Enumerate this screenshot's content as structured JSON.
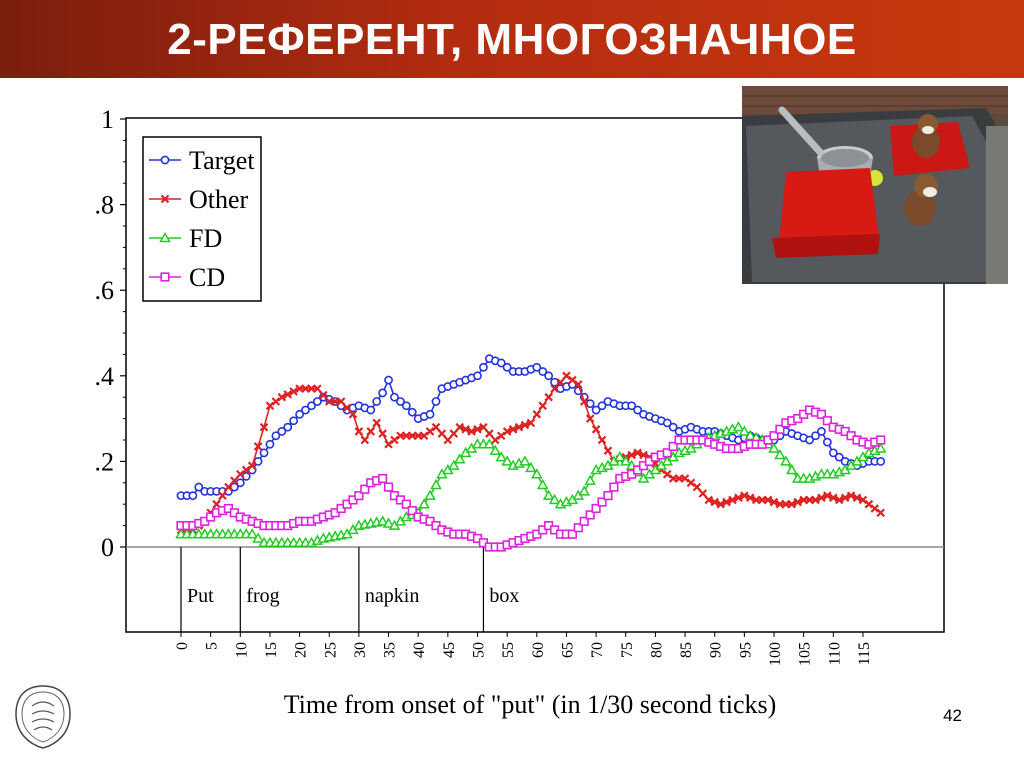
{
  "slide": {
    "title": "2-РЕФЕРЕНТ, МНОГОЗНАЧНОЕ",
    "page_number": "42",
    "photo_icon": "scene-photo-icon",
    "logo_icon": "university-seal-icon"
  },
  "chart_data": {
    "type": "line",
    "title": "",
    "xlabel": "Time from  onset of \"put\" (in 1/30 second ticks)",
    "ylabel": "",
    "xlim": [
      0,
      120
    ],
    "ylim": [
      -0.2,
      1
    ],
    "x_ticks": [
      0,
      5,
      10,
      15,
      20,
      25,
      30,
      35,
      40,
      45,
      50,
      55,
      60,
      65,
      70,
      75,
      80,
      85,
      90,
      95,
      100,
      105,
      110,
      115
    ],
    "x_tick_labels": [
      "0",
      "5",
      "10",
      "15",
      "20",
      "25",
      "30",
      "35",
      "40",
      "45",
      "50",
      "55",
      "60",
      "65",
      "70",
      "75",
      "80",
      "85",
      "90",
      "95",
      "100",
      "105",
      "110",
      "115"
    ],
    "y_ticks": [
      0,
      0.2,
      0.4,
      0.6,
      0.8,
      1
    ],
    "y_tick_labels": [
      "0",
      ".2",
      ".4",
      ".6",
      ".8",
      "1"
    ],
    "grid": false,
    "legend_position": "top-left",
    "word_markers": [
      {
        "label": "Put",
        "x": 0
      },
      {
        "label": "frog",
        "x": 10
      },
      {
        "label": "napkin",
        "x": 30
      },
      {
        "label": "box",
        "x": 51
      }
    ],
    "series": [
      {
        "name": "Target",
        "color": "#2233dd",
        "marker": "circle",
        "knots": [
          [
            0,
            0.12
          ],
          [
            2,
            0.12
          ],
          [
            3,
            0.14
          ],
          [
            4,
            0.13
          ],
          [
            8,
            0.13
          ],
          [
            10,
            0.15
          ],
          [
            12,
            0.18
          ],
          [
            14,
            0.22
          ],
          [
            16,
            0.26
          ],
          [
            18,
            0.28
          ],
          [
            20,
            0.31
          ],
          [
            22,
            0.33
          ],
          [
            24,
            0.35
          ],
          [
            26,
            0.34
          ],
          [
            28,
            0.32
          ],
          [
            30,
            0.33
          ],
          [
            32,
            0.32
          ],
          [
            34,
            0.36
          ],
          [
            35,
            0.39
          ],
          [
            36,
            0.35
          ],
          [
            38,
            0.33
          ],
          [
            40,
            0.3
          ],
          [
            42,
            0.31
          ],
          [
            44,
            0.37
          ],
          [
            46,
            0.38
          ],
          [
            48,
            0.39
          ],
          [
            50,
            0.4
          ],
          [
            52,
            0.44
          ],
          [
            54,
            0.43
          ],
          [
            56,
            0.41
          ],
          [
            58,
            0.41
          ],
          [
            60,
            0.42
          ],
          [
            62,
            0.4
          ],
          [
            64,
            0.37
          ],
          [
            66,
            0.38
          ],
          [
            68,
            0.35
          ],
          [
            70,
            0.32
          ],
          [
            72,
            0.34
          ],
          [
            74,
            0.33
          ],
          [
            76,
            0.33
          ],
          [
            78,
            0.31
          ],
          [
            80,
            0.3
          ],
          [
            82,
            0.29
          ],
          [
            84,
            0.27
          ],
          [
            86,
            0.28
          ],
          [
            88,
            0.27
          ],
          [
            90,
            0.27
          ],
          [
            92,
            0.26
          ],
          [
            94,
            0.25
          ],
          [
            96,
            0.26
          ],
          [
            98,
            0.25
          ],
          [
            100,
            0.25
          ],
          [
            102,
            0.27
          ],
          [
            104,
            0.26
          ],
          [
            106,
            0.25
          ],
          [
            108,
            0.27
          ],
          [
            110,
            0.22
          ],
          [
            112,
            0.2
          ],
          [
            114,
            0.19
          ],
          [
            116,
            0.2
          ],
          [
            118,
            0.2
          ]
        ]
      },
      {
        "name": "Other",
        "color": "#dd2222",
        "marker": "x",
        "knots": [
          [
            0,
            0.04
          ],
          [
            2,
            0.04
          ],
          [
            4,
            0.06
          ],
          [
            6,
            0.1
          ],
          [
            8,
            0.14
          ],
          [
            10,
            0.17
          ],
          [
            12,
            0.19
          ],
          [
            14,
            0.28
          ],
          [
            15,
            0.33
          ],
          [
            17,
            0.35
          ],
          [
            20,
            0.37
          ],
          [
            23,
            0.37
          ],
          [
            25,
            0.34
          ],
          [
            27,
            0.34
          ],
          [
            29,
            0.31
          ],
          [
            30,
            0.27
          ],
          [
            31,
            0.25
          ],
          [
            33,
            0.29
          ],
          [
            35,
            0.24
          ],
          [
            37,
            0.26
          ],
          [
            39,
            0.26
          ],
          [
            41,
            0.26
          ],
          [
            43,
            0.28
          ],
          [
            45,
            0.25
          ],
          [
            47,
            0.28
          ],
          [
            49,
            0.27
          ],
          [
            51,
            0.28
          ],
          [
            53,
            0.25
          ],
          [
            55,
            0.27
          ],
          [
            57,
            0.28
          ],
          [
            59,
            0.29
          ],
          [
            61,
            0.33
          ],
          [
            63,
            0.37
          ],
          [
            65,
            0.4
          ],
          [
            67,
            0.38
          ],
          [
            69,
            0.3
          ],
          [
            71,
            0.25
          ],
          [
            73,
            0.2
          ],
          [
            75,
            0.21
          ],
          [
            77,
            0.22
          ],
          [
            79,
            0.21
          ],
          [
            81,
            0.18
          ],
          [
            83,
            0.16
          ],
          [
            85,
            0.16
          ],
          [
            87,
            0.14
          ],
          [
            89,
            0.11
          ],
          [
            91,
            0.1
          ],
          [
            93,
            0.11
          ],
          [
            95,
            0.12
          ],
          [
            97,
            0.11
          ],
          [
            99,
            0.11
          ],
          [
            101,
            0.1
          ],
          [
            103,
            0.1
          ],
          [
            105,
            0.11
          ],
          [
            107,
            0.11
          ],
          [
            109,
            0.12
          ],
          [
            111,
            0.11
          ],
          [
            113,
            0.12
          ],
          [
            115,
            0.11
          ],
          [
            117,
            0.09
          ],
          [
            118,
            0.08
          ]
        ]
      },
      {
        "name": "FD",
        "color": "#22cc22",
        "marker": "triangle",
        "knots": [
          [
            0,
            0.03
          ],
          [
            12,
            0.03
          ],
          [
            14,
            0.01
          ],
          [
            18,
            0.01
          ],
          [
            22,
            0.01
          ],
          [
            24,
            0.02
          ],
          [
            28,
            0.03
          ],
          [
            30,
            0.05
          ],
          [
            34,
            0.06
          ],
          [
            36,
            0.05
          ],
          [
            38,
            0.07
          ],
          [
            40,
            0.08
          ],
          [
            42,
            0.12
          ],
          [
            44,
            0.17
          ],
          [
            46,
            0.19
          ],
          [
            48,
            0.22
          ],
          [
            50,
            0.24
          ],
          [
            52,
            0.24
          ],
          [
            54,
            0.21
          ],
          [
            56,
            0.19
          ],
          [
            58,
            0.2
          ],
          [
            60,
            0.17
          ],
          [
            62,
            0.12
          ],
          [
            64,
            0.1
          ],
          [
            66,
            0.11
          ],
          [
            68,
            0.13
          ],
          [
            70,
            0.18
          ],
          [
            72,
            0.19
          ],
          [
            74,
            0.21
          ],
          [
            76,
            0.19
          ],
          [
            78,
            0.16
          ],
          [
            80,
            0.18
          ],
          [
            82,
            0.2
          ],
          [
            84,
            0.22
          ],
          [
            86,
            0.23
          ],
          [
            88,
            0.25
          ],
          [
            90,
            0.26
          ],
          [
            92,
            0.27
          ],
          [
            94,
            0.28
          ],
          [
            96,
            0.26
          ],
          [
            98,
            0.25
          ],
          [
            100,
            0.23
          ],
          [
            102,
            0.2
          ],
          [
            104,
            0.16
          ],
          [
            106,
            0.16
          ],
          [
            108,
            0.17
          ],
          [
            110,
            0.17
          ],
          [
            112,
            0.18
          ],
          [
            114,
            0.2
          ],
          [
            116,
            0.22
          ],
          [
            118,
            0.23
          ]
        ]
      },
      {
        "name": "CD",
        "color": "#dd22dd",
        "marker": "square",
        "knots": [
          [
            0,
            0.05
          ],
          [
            2,
            0.05
          ],
          [
            4,
            0.06
          ],
          [
            6,
            0.08
          ],
          [
            8,
            0.09
          ],
          [
            10,
            0.07
          ],
          [
            12,
            0.06
          ],
          [
            14,
            0.05
          ],
          [
            18,
            0.05
          ],
          [
            20,
            0.06
          ],
          [
            22,
            0.06
          ],
          [
            24,
            0.07
          ],
          [
            26,
            0.08
          ],
          [
            28,
            0.1
          ],
          [
            30,
            0.12
          ],
          [
            32,
            0.15
          ],
          [
            34,
            0.16
          ],
          [
            36,
            0.12
          ],
          [
            38,
            0.1
          ],
          [
            40,
            0.07
          ],
          [
            42,
            0.06
          ],
          [
            44,
            0.04
          ],
          [
            46,
            0.03
          ],
          [
            48,
            0.03
          ],
          [
            50,
            0.02
          ],
          [
            52,
            0.0
          ],
          [
            54,
            0.0
          ],
          [
            56,
            0.01
          ],
          [
            58,
            0.02
          ],
          [
            60,
            0.03
          ],
          [
            62,
            0.05
          ],
          [
            64,
            0.03
          ],
          [
            66,
            0.03
          ],
          [
            68,
            0.06
          ],
          [
            70,
            0.09
          ],
          [
            72,
            0.12
          ],
          [
            74,
            0.16
          ],
          [
            76,
            0.17
          ],
          [
            78,
            0.19
          ],
          [
            80,
            0.21
          ],
          [
            82,
            0.22
          ],
          [
            84,
            0.25
          ],
          [
            86,
            0.25
          ],
          [
            88,
            0.25
          ],
          [
            90,
            0.24
          ],
          [
            92,
            0.23
          ],
          [
            94,
            0.23
          ],
          [
            96,
            0.24
          ],
          [
            98,
            0.24
          ],
          [
            100,
            0.26
          ],
          [
            102,
            0.29
          ],
          [
            104,
            0.3
          ],
          [
            106,
            0.32
          ],
          [
            108,
            0.31
          ],
          [
            110,
            0.28
          ],
          [
            112,
            0.27
          ],
          [
            114,
            0.25
          ],
          [
            116,
            0.24
          ],
          [
            118,
            0.25
          ]
        ]
      }
    ]
  }
}
